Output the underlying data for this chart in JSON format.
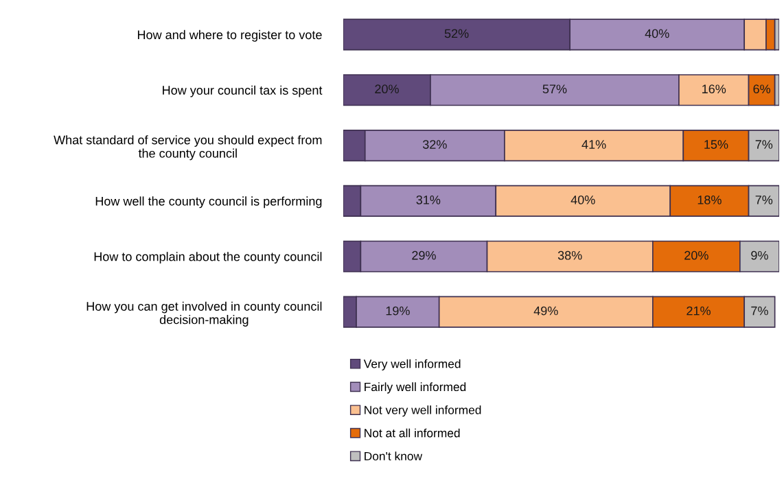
{
  "chart_data": {
    "type": "bar",
    "orientation": "horizontal",
    "stacked": true,
    "tick_labels": "y",
    "xlim": [
      0,
      100
    ],
    "legend": "bottom",
    "categories": [
      "How and where to register to vote",
      "How your council tax is spent",
      "What standard of service you should expect from\nthe county council",
      "How well the county council is performing",
      "How to complain about the county council",
      "How you can get involved in county council\ndecision-making"
    ],
    "series": [
      {
        "name": "Very well informed",
        "color": "#604a7b",
        "values": [
          52,
          20,
          5,
          4,
          4,
          3
        ],
        "value_labels": [
          "52%",
          "20%",
          null,
          null,
          null,
          null
        ]
      },
      {
        "name": "Fairly well informed",
        "color": "#a28dba",
        "values": [
          40,
          57,
          32,
          31,
          29,
          19
        ],
        "value_labels": [
          "40%",
          "57%",
          "32%",
          "31%",
          "29%",
          "19%"
        ]
      },
      {
        "name": "Not very well informed",
        "color": "#fac090",
        "values": [
          5,
          16,
          41,
          40,
          38,
          49
        ],
        "value_labels": [
          null,
          "16%",
          "41%",
          "40%",
          "38%",
          "49%"
        ]
      },
      {
        "name": "Not at all informed",
        "color": "#e46c0a",
        "values": [
          2,
          6,
          15,
          18,
          20,
          21
        ],
        "value_labels": [
          null,
          "6%",
          "15%",
          "18%",
          "20%",
          "21%"
        ]
      },
      {
        "name": "Don't know",
        "color": "#bfbfbf",
        "values": [
          1,
          1,
          7,
          7,
          9,
          7
        ],
        "value_labels": [
          null,
          null,
          "7%",
          "7%",
          "9%",
          "7%"
        ]
      }
    ]
  }
}
